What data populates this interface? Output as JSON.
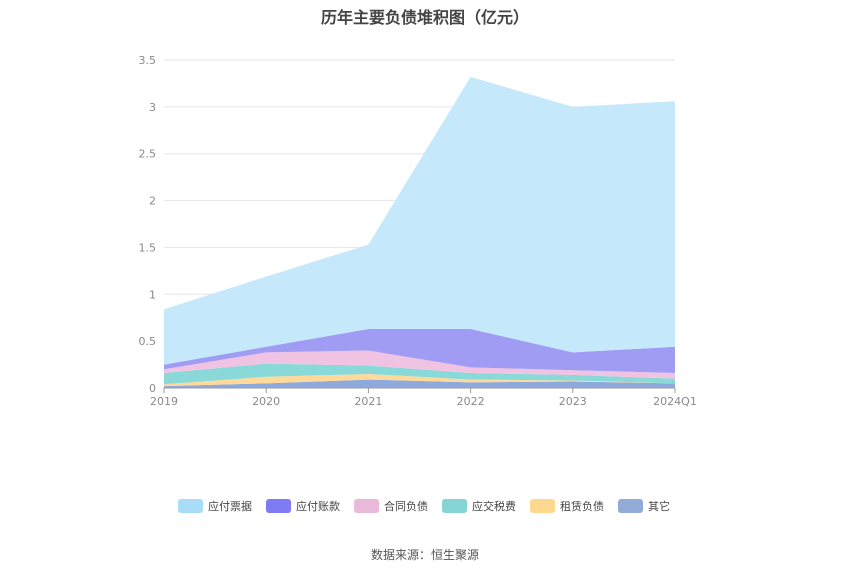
{
  "chart_data": {
    "type": "area",
    "stacked": true,
    "title": "历年主要负债堆积图（亿元）",
    "x": [
      "2019",
      "2020",
      "2021",
      "2022",
      "2023",
      "2024Q1"
    ],
    "ylim": [
      0,
      3.5
    ],
    "yticks": [
      "0",
      "0.5",
      "1",
      "1.5",
      "2",
      "2.5",
      "3",
      "3.5"
    ],
    "grid": true,
    "legend_position": "bottom",
    "series": [
      {
        "name": "其它",
        "color": "#8eaadc",
        "values": [
          0.02,
          0.05,
          0.09,
          0.06,
          0.07,
          0.05
        ]
      },
      {
        "name": "租赁负债",
        "color": "#ffd99a",
        "values": [
          0.02,
          0.07,
          0.06,
          0.03,
          0.01,
          0.0
        ]
      },
      {
        "name": "应交税费",
        "color": "#8ad9d9",
        "values": [
          0.12,
          0.14,
          0.09,
          0.07,
          0.06,
          0.05
        ]
      },
      {
        "name": "合同负债",
        "color": "#f0c3e3",
        "values": [
          0.04,
          0.12,
          0.16,
          0.06,
          0.05,
          0.06
        ]
      },
      {
        "name": "应付账款",
        "color": "#a09cf4",
        "values": [
          0.05,
          0.06,
          0.23,
          0.41,
          0.19,
          0.28
        ]
      },
      {
        "name": "应付票据",
        "color": "#c5e9fb",
        "values": [
          0.59,
          0.75,
          0.9,
          2.69,
          2.62,
          2.62
        ]
      }
    ],
    "legend": [
      {
        "name": "应付票据",
        "color": "#a9dcf7"
      },
      {
        "name": "应付账款",
        "color": "#7f7bf2"
      },
      {
        "name": "合同负债",
        "color": "#e8b9d9"
      },
      {
        "name": "应交税费",
        "color": "#86d4d4"
      },
      {
        "name": "租赁负债",
        "color": "#ffd88f"
      },
      {
        "name": "其它",
        "color": "#92acd9"
      }
    ]
  },
  "source_text": "数据来源：恒生聚源"
}
